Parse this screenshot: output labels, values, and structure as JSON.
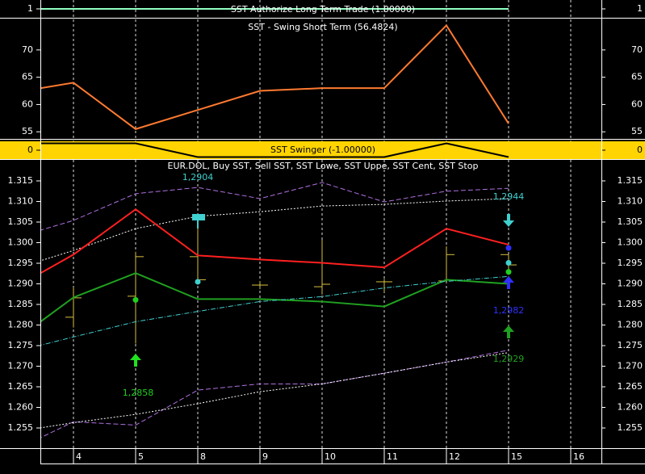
{
  "chart_data": [
    {
      "type": "line",
      "title": "SST Authorize Long Term Trade (1.00000)",
      "ylim": [
        0.5,
        1.5
      ],
      "yticks": [
        1
      ],
      "series": [
        {
          "color": "#8fffc0",
          "style": "solid",
          "values": [
            1,
            1,
            1,
            1,
            1,
            1,
            1,
            1,
            1,
            null
          ]
        }
      ]
    },
    {
      "type": "line",
      "title": "SST - Swing Short Term (56.4824)",
      "ylim": [
        53.7,
        75.6
      ],
      "yticks": [
        55,
        60,
        65,
        70
      ],
      "series": [
        {
          "color": "#ff7a30",
          "style": "solid",
          "values": [
            62.1,
            64,
            55.5,
            59,
            62.5,
            63,
            63,
            74.5,
            56.5,
            null
          ]
        }
      ]
    },
    {
      "type": "line",
      "title": "SST Swinger (-1.00000)",
      "background": "#ffd400",
      "ylim": [
        -1.3,
        1.3
      ],
      "yticks": [
        0
      ],
      "series": [
        {
          "color": "#000000",
          "style": "solid",
          "values": [
            1,
            1,
            1,
            -1,
            -1,
            -1,
            -1,
            1,
            -1,
            null
          ]
        }
      ]
    },
    {
      "type": "line",
      "title": "EUR.DOL, Buy SST, Sell SST, SST Lowe, SST Uppe, SST Cent, SST Stop",
      "categories": [
        null,
        "4",
        "5",
        "8",
        "9",
        "10",
        "11",
        "12",
        "15",
        "16"
      ],
      "ylim": [
        1.2501,
        1.3201
      ],
      "yticks": [
        1.255,
        {
          "value": 1.26,
          "label": "1.260"
        },
        1.265,
        {
          "value": 1.27,
          "label": "1.270"
        },
        1.275,
        {
          "value": 1.28,
          "label": "1.280"
        },
        1.285,
        {
          "value": 1.29,
          "label": "1.290"
        },
        1.295,
        {
          "value": 1.3,
          "label": "1.300"
        },
        1.305,
        {
          "value": 1.31,
          "label": "1.310"
        },
        1.315
      ],
      "series": [
        {
          "color": "#b070e0",
          "style": "dashed",
          "values": [
            1.3009,
            1.3054,
            1.3119,
            1.3134,
            1.3107,
            1.3146,
            1.3099,
            1.3125,
            1.3132,
            null
          ]
        },
        {
          "color": "#ffffff",
          "style": "dotted",
          "values": [
            1.2934,
            1.2981,
            1.3034,
            1.3064,
            1.3075,
            1.3089,
            1.3093,
            1.3101,
            1.3107,
            null
          ]
        },
        {
          "color": "#ff2020",
          "style": "solid",
          "values": [
            1.2886,
            1.2971,
            1.3081,
            1.2969,
            1.2959,
            1.2951,
            1.294,
            1.3034,
            1.2995,
            null
          ]
        },
        {
          "color": "#20a020",
          "style": "solid",
          "values": [
            1.2756,
            1.2867,
            1.2926,
            1.2863,
            1.2863,
            1.2857,
            1.2845,
            1.291,
            1.29,
            null
          ]
        },
        {
          "color": "#40d0d0",
          "style": "dashdot",
          "values": [
            1.2733,
            1.2771,
            1.2808,
            1.2833,
            1.2857,
            1.2869,
            1.289,
            1.2906,
            1.2918,
            null
          ]
        },
        {
          "color": "#b070e0",
          "style": "dashed",
          "values": [
            1.2492,
            1.2565,
            1.2557,
            1.2642,
            1.2657,
            1.2657,
            1.2683,
            1.271,
            1.2739,
            null
          ]
        },
        {
          "color": "#ffffff",
          "style": "dotted",
          "values": [
            1.2539,
            1.2563,
            1.2583,
            1.2609,
            1.2638,
            1.2657,
            1.2683,
            1.271,
            1.2733,
            null
          ]
        }
      ],
      "ohlc": {
        "color": "#d8c040",
        "open": [
          null,
          1.2819,
          1.287,
          1.2966,
          1.2897,
          1.2893,
          1.2905,
          1.2907,
          1.2971,
          null
        ],
        "high": [
          null,
          1.2892,
          1.2978,
          1.306,
          1.2907,
          1.3007,
          1.2912,
          1.2991,
          1.2971,
          null
        ],
        "low": [
          null,
          1.2794,
          1.2755,
          1.2907,
          1.2887,
          1.2874,
          1.288,
          1.2903,
          1.2922,
          null
        ],
        "close": [
          null,
          1.2866,
          1.2966,
          1.291,
          1.2897,
          1.2899,
          1.2905,
          1.2971,
          1.2946,
          null
        ]
      },
      "markers": [
        {
          "color": "#40d0d0",
          "values": [
            null,
            null,
            null,
            1.2905,
            null,
            null,
            null,
            null,
            1.2951,
            null
          ]
        },
        {
          "color": "#20d020",
          "values": [
            null,
            null,
            1.2861,
            null,
            null,
            null,
            null,
            null,
            1.2929,
            null
          ]
        },
        {
          "color": "#3030ff",
          "values": [
            null,
            null,
            null,
            null,
            null,
            null,
            null,
            null,
            1.2987,
            null
          ]
        }
      ],
      "annotations": [
        {
          "text": "1,2904",
          "color": "#40d0d0"
        },
        {
          "text": "1,2944",
          "color": "#40d0d0"
        },
        {
          "text": "1,2858",
          "color": "#20d020"
        },
        {
          "text": "1,2982",
          "color": "#3030ff"
        },
        {
          "text": "1,2929",
          "color": "#20a020"
        }
      ]
    }
  ]
}
